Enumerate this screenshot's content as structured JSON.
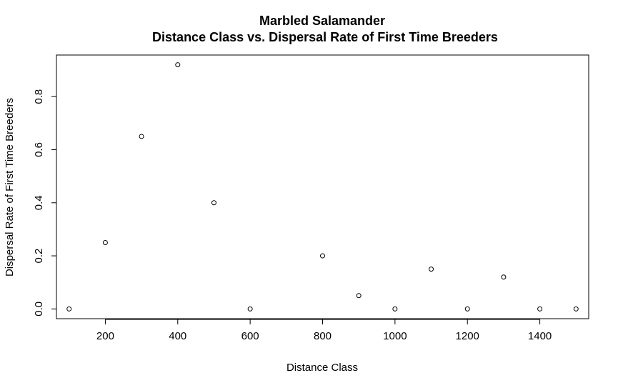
{
  "chart_data": {
    "type": "scatter",
    "title": "Marbled Salamander",
    "subtitle": "Distance Class vs. Dispersal Rate of First Time Breeders",
    "xlabel": "Distance Class",
    "ylabel": "Dispersal Rate of First Time Breeders",
    "xlim": [
      65,
      1535
    ],
    "ylim": [
      -0.0368,
      0.9568
    ],
    "xticks": [
      200,
      400,
      600,
      800,
      1000,
      1200,
      1400
    ],
    "xtick_labels": [
      "200",
      "400",
      "600",
      "800",
      "1000",
      "1200",
      "1400"
    ],
    "yticks": [
      0.0,
      0.2,
      0.4,
      0.6,
      0.8
    ],
    "ytick_labels": [
      "0.0",
      "0.2",
      "0.4",
      "0.6",
      "0.8"
    ],
    "grid": false,
    "marker": "open-circle",
    "points": [
      {
        "x": 100,
        "y": 0.0
      },
      {
        "x": 200,
        "y": 0.25
      },
      {
        "x": 300,
        "y": 0.65
      },
      {
        "x": 400,
        "y": 0.92
      },
      {
        "x": 500,
        "y": 0.4
      },
      {
        "x": 600,
        "y": 0.0
      },
      {
        "x": 800,
        "y": 0.2
      },
      {
        "x": 900,
        "y": 0.05
      },
      {
        "x": 1000,
        "y": 0.0
      },
      {
        "x": 1100,
        "y": 0.15
      },
      {
        "x": 1200,
        "y": 0.0
      },
      {
        "x": 1300,
        "y": 0.12
      },
      {
        "x": 1400,
        "y": 0.0
      },
      {
        "x": 1500,
        "y": 0.0
      }
    ]
  }
}
